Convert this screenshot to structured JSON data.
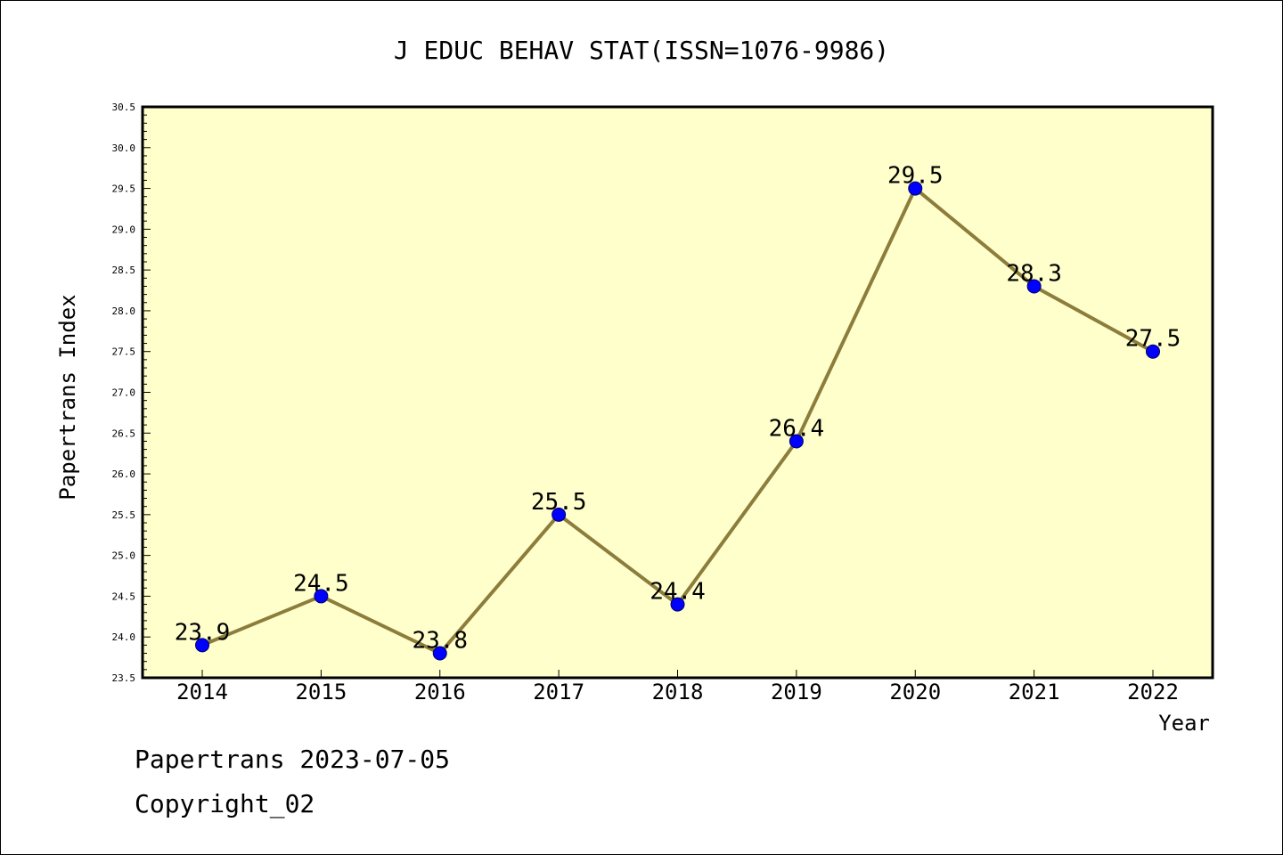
{
  "chart_data": {
    "type": "line",
    "title": "J EDUC BEHAV STAT(ISSN=1076-9986)",
    "xlabel": "Year",
    "ylabel": "Papertrans Index",
    "categories": [
      "2014",
      "2015",
      "2016",
      "2017",
      "2018",
      "2019",
      "2020",
      "2021",
      "2022"
    ],
    "series": [
      {
        "values": [
          23.9,
          24.5,
          23.8,
          25.5,
          24.4,
          26.4,
          29.5,
          28.3,
          27.5
        ],
        "labels": [
          "23.9",
          "24.5",
          "23.8",
          "25.5",
          "24.4",
          "26.4",
          "29.5",
          "28.3",
          "27.5"
        ]
      }
    ],
    "ylim": [
      23.5,
      30.5
    ],
    "yticks": [
      "23.5",
      "24.0",
      "24.5",
      "25.0",
      "25.5",
      "26.0",
      "26.5",
      "27.0",
      "27.5",
      "28.0",
      "28.5",
      "29.0",
      "29.5",
      "30.0",
      "30.5"
    ],
    "grid": false,
    "colors": {
      "plot_background": "#ffffcc",
      "line": "#8c7d3c",
      "marker": "#0000ff"
    }
  },
  "footer": {
    "line1": "Papertrans 2023-07-05",
    "line2": "Copyright_02"
  }
}
